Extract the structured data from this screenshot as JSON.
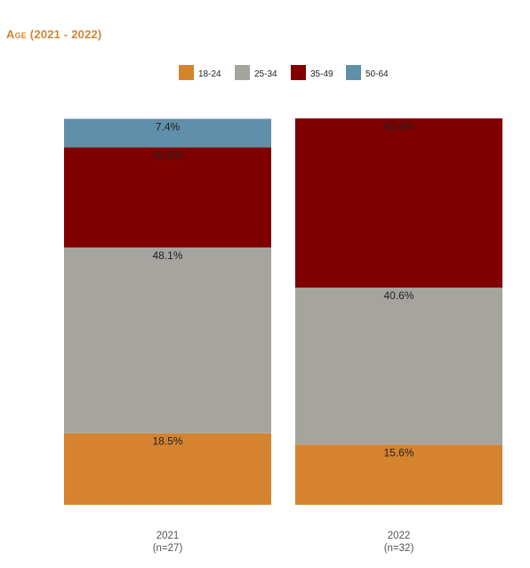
{
  "chart_data": {
    "type": "bar",
    "stacked": true,
    "percent": true,
    "title": "Age (2021 - 2022)",
    "legend_position": "top-center",
    "categories": [
      "2021",
      "2022"
    ],
    "category_subtitles": [
      "(n=27)",
      "(n=32)"
    ],
    "series": [
      {
        "name": "18-24",
        "color": "#d5832f",
        "values": [
          18.5,
          15.6
        ],
        "labels": [
          "18.5%",
          "15.6%"
        ]
      },
      {
        "name": "25-34",
        "color": "#a6a49f",
        "values": [
          48.1,
          40.6
        ],
        "labels": [
          "48.1%",
          "40.6%"
        ]
      },
      {
        "name": "35-49",
        "color": "#800000",
        "values": [
          25.9,
          43.8
        ],
        "labels": [
          "25.9%",
          "43.8%"
        ]
      },
      {
        "name": "50-64",
        "color": "#5f8fa9",
        "values": [
          7.4,
          0
        ],
        "labels": [
          "7.4%",
          ""
        ]
      }
    ],
    "grid": false
  }
}
